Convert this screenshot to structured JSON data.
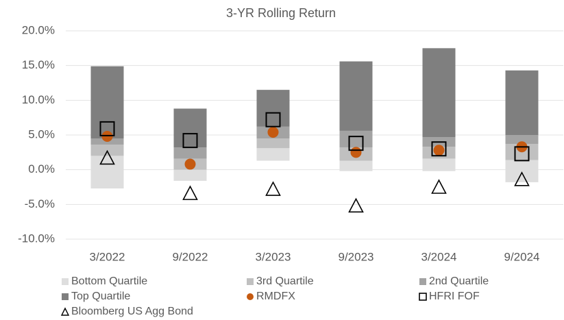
{
  "chart_data": {
    "type": "bar",
    "stacked": true,
    "title": "3-YR Rolling Return",
    "categories": [
      "3/2022",
      "9/2022",
      "3/2023",
      "9/2023",
      "3/2024",
      "9/2024"
    ],
    "base": [
      -2.7,
      -1.6,
      1.3,
      -0.2,
      -0.2,
      -1.8
    ],
    "series": [
      {
        "name": "Bottom Quartile",
        "kind": "bar",
        "color": "#dedede",
        "values": [
          4.7,
          1.6,
          1.8,
          1.5,
          1.8,
          3.2
        ]
      },
      {
        "name": "3rd Quartile",
        "kind": "bar",
        "color": "#c0c0c0",
        "values": [
          1.6,
          1.6,
          1.4,
          1.9,
          1.7,
          2.3
        ]
      },
      {
        "name": "2nd Quartile",
        "kind": "bar",
        "color": "#a3a3a3",
        "values": [
          0.9,
          1.6,
          1.7,
          2.4,
          1.4,
          1.3
        ]
      },
      {
        "name": "Top Quartile",
        "kind": "bar",
        "color": "#7f7f7f",
        "values": [
          10.4,
          5.6,
          5.3,
          10.0,
          12.8,
          9.3
        ]
      },
      {
        "name": "RMDFX",
        "kind": "marker",
        "marker": "circle",
        "color": "#c55a11",
        "values": [
          4.8,
          0.8,
          5.4,
          2.5,
          2.8,
          3.3
        ]
      },
      {
        "name": "HFRI FOF",
        "kind": "marker",
        "marker": "square",
        "color": "#000000",
        "values": [
          5.9,
          4.2,
          7.2,
          3.8,
          3.0,
          2.3
        ]
      },
      {
        "name": "Bloomberg US Agg Bond",
        "kind": "marker",
        "marker": "triangle",
        "color": "#000000",
        "values": [
          1.7,
          -3.4,
          -2.8,
          -5.2,
          -2.5,
          -1.4
        ]
      }
    ],
    "ylim": [
      -10,
      20
    ],
    "yticks": [
      {
        "value": -10,
        "label": "-10.0%"
      },
      {
        "value": -5,
        "label": "-5.0%"
      },
      {
        "value": 0,
        "label": "0.0%"
      },
      {
        "value": 5,
        "label": "5.0%"
      },
      {
        "value": 10,
        "label": "10.0%"
      },
      {
        "value": 15,
        "label": "15.0%"
      },
      {
        "value": 20,
        "label": "20.0%"
      }
    ],
    "grid": true,
    "legend": "bottom"
  }
}
